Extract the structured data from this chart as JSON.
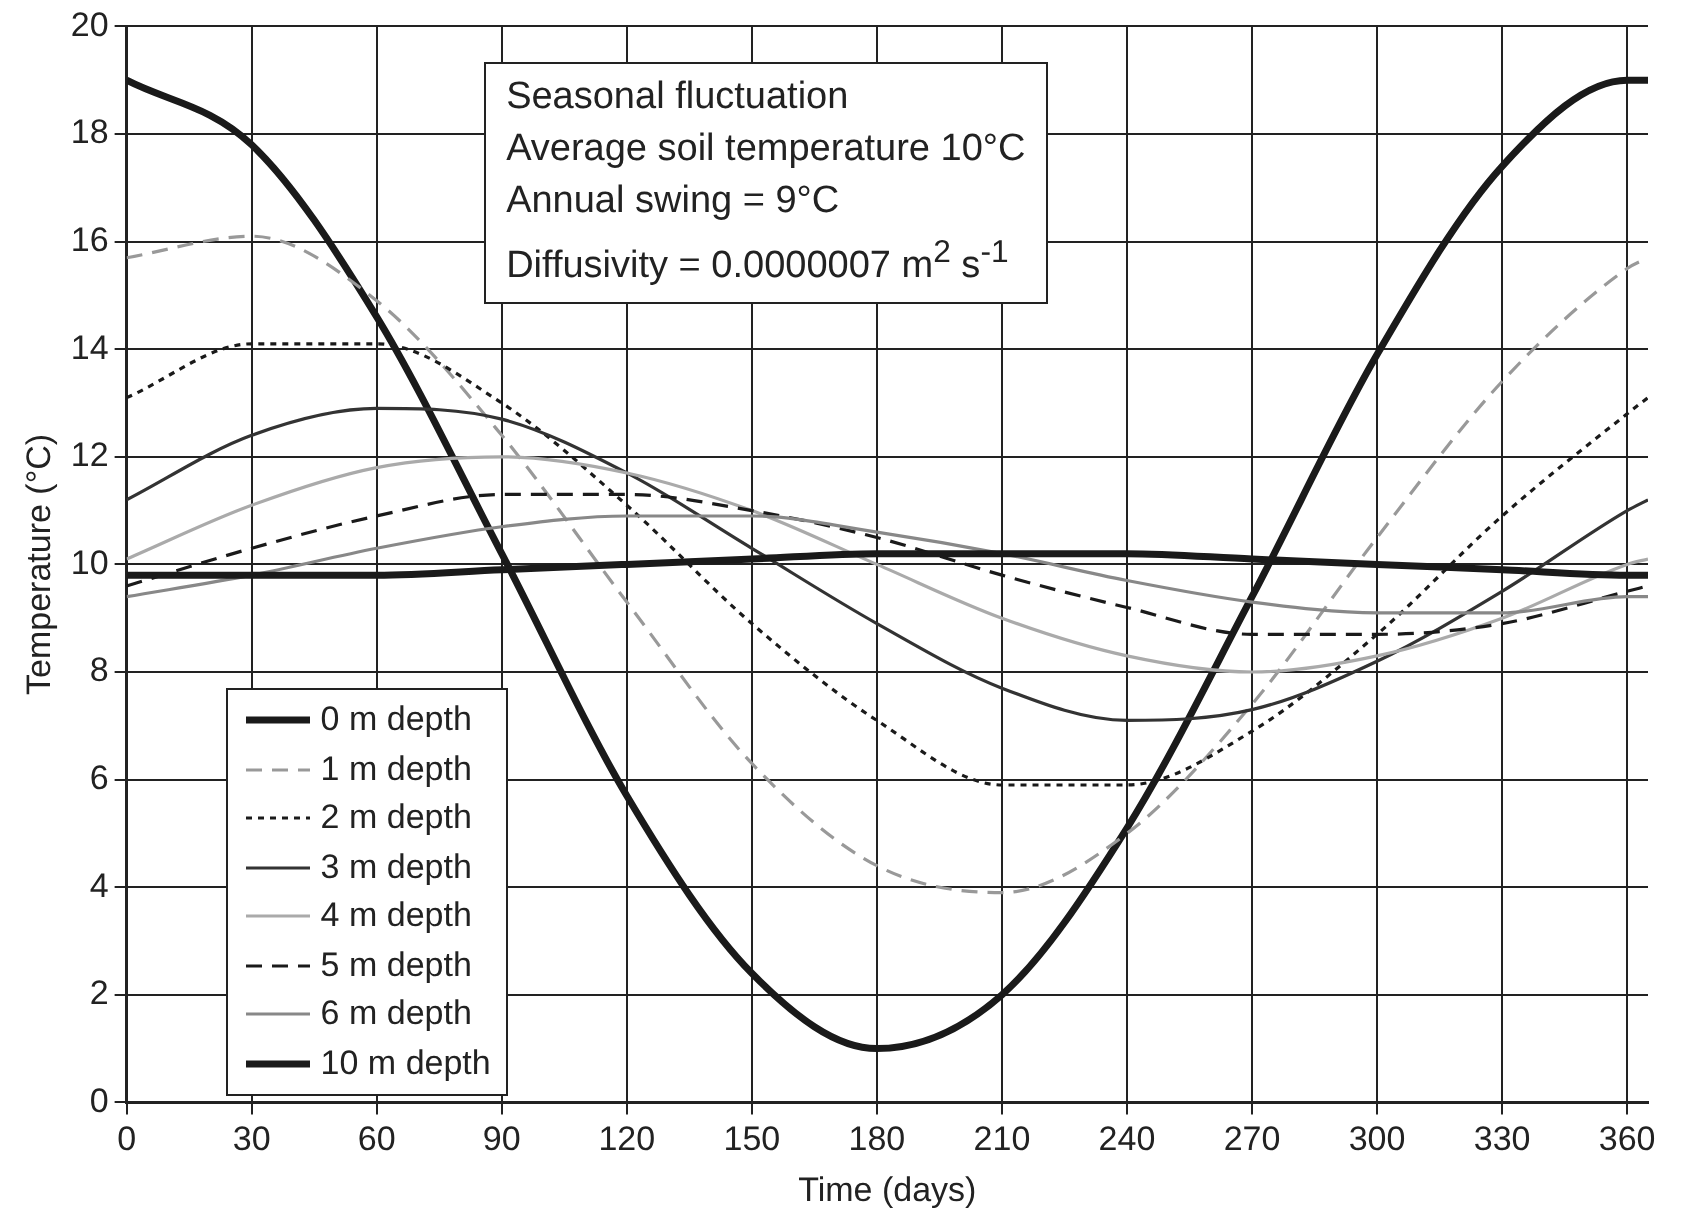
{
  "chart_data": {
    "type": "line",
    "xlabel": "Time (days)",
    "ylabel": "Temperature (°C)",
    "annotations": [
      "Seasonal fluctuation",
      "Average soil temperature 10°C",
      "Annual swing = 9°C",
      "Diffusivity = 0.0000007 m$^{2}$ s$^{-1}$"
    ],
    "x": [
      0,
      30,
      60,
      90,
      120,
      150,
      180,
      210,
      240,
      270,
      300,
      330,
      360,
      365
    ],
    "series": [
      {
        "name": "0 m depth",
        "color": "#1a1a1a",
        "line_style": "solid",
        "values": [
          19.0,
          17.8,
          14.6,
          10.2,
          5.7,
          2.4,
          1.0,
          2.0,
          5.1,
          9.4,
          13.9,
          17.4,
          19.0,
          19.0
        ]
      },
      {
        "name": "1 m depth",
        "color": "#999999",
        "line_style": "dashed",
        "values": [
          15.7,
          16.1,
          14.9,
          12.4,
          9.3,
          6.3,
          4.4,
          3.9,
          5.0,
          7.4,
          10.5,
          13.4,
          15.5,
          15.7
        ]
      },
      {
        "name": "2 m depth",
        "color": "#1a1a1a",
        "line_style": "dotted",
        "values": [
          13.1,
          14.1,
          14.1,
          13.0,
          11.1,
          8.9,
          7.1,
          5.9,
          5.9,
          6.9,
          8.7,
          10.9,
          12.8,
          13.1
        ]
      },
      {
        "name": "3 m depth",
        "color": "#333333",
        "line_style": "solid",
        "values": [
          11.2,
          12.4,
          12.9,
          12.7,
          11.7,
          10.3,
          8.9,
          7.7,
          7.1,
          7.3,
          8.2,
          9.5,
          11.0,
          11.2
        ]
      },
      {
        "name": "4 m depth",
        "color": "#aaaaaa",
        "line_style": "solid",
        "values": [
          10.1,
          11.1,
          11.8,
          12.0,
          11.7,
          11.0,
          10.0,
          9.0,
          8.3,
          8.0,
          8.3,
          9.0,
          10.0,
          10.1
        ]
      },
      {
        "name": "5 m depth",
        "color": "#1a1a1a",
        "line_style": "dashed",
        "values": [
          9.6,
          10.3,
          10.9,
          11.3,
          11.3,
          11.0,
          10.5,
          9.8,
          9.2,
          8.7,
          8.7,
          8.9,
          9.5,
          9.6
        ]
      },
      {
        "name": "6 m depth",
        "color": "#888888",
        "line_style": "solid",
        "values": [
          9.4,
          9.8,
          10.3,
          10.7,
          10.9,
          10.9,
          10.6,
          10.2,
          9.7,
          9.3,
          9.1,
          9.1,
          9.4,
          9.4
        ]
      },
      {
        "name": "10 m depth",
        "color": "#1a1a1a",
        "line_style": "solid",
        "values": [
          9.8,
          9.8,
          9.8,
          9.9,
          10.0,
          10.1,
          10.2,
          10.2,
          10.2,
          10.1,
          10.0,
          9.9,
          9.8,
          9.8
        ]
      }
    ],
    "xlim": [
      0,
      365
    ],
    "xticks": [
      0,
      30,
      60,
      90,
      120,
      150,
      180,
      210,
      240,
      270,
      300,
      330,
      360
    ],
    "ylim": [
      0,
      20
    ],
    "yticks": [
      0,
      2,
      4,
      6,
      8,
      10,
      12,
      14,
      16,
      18,
      20
    ],
    "grid": true,
    "legend": "bottom left",
    "marker": "none"
  }
}
